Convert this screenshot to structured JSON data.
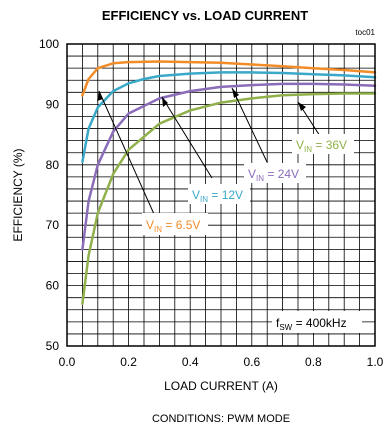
{
  "chart_data": {
    "type": "line",
    "title": "EFFICIENCY vs. LOAD CURRENT",
    "code": "toc01",
    "xlabel": "LOAD CURRENT (A)",
    "ylabel": "EFFICIENCY (%)",
    "xlim": [
      0,
      1.0
    ],
    "ylim": [
      50,
      100
    ],
    "xticks": [
      "0.0",
      "0.2",
      "0.4",
      "0.6",
      "0.8",
      "1.0"
    ],
    "yticks": [
      "50",
      "60",
      "70",
      "80",
      "90",
      "100"
    ],
    "grid": true,
    "conditions": "CONDITIONS: PWM MODE",
    "fsw_note": {
      "prefix": "f",
      "sub": "SW",
      "suffix": " = 400kHz"
    },
    "series": [
      {
        "name": "VIN = 6.5V",
        "label_prefix": "V",
        "label_sub": "IN",
        "label_suffix": " = 6.5V",
        "color": "#f28c28",
        "x": [
          0.05,
          0.07,
          0.1,
          0.15,
          0.2,
          0.3,
          0.4,
          0.5,
          0.6,
          0.7,
          0.8,
          0.9,
          1.0
        ],
        "y": [
          91.5,
          94.2,
          96.0,
          96.8,
          97.0,
          97.1,
          97.0,
          96.9,
          96.6,
          96.3,
          96.0,
          95.7,
          95.3
        ]
      },
      {
        "name": "VIN = 12V",
        "label_prefix": "V",
        "label_sub": "IN",
        "label_suffix": " = 12V",
        "color": "#3aa8c8",
        "x": [
          0.05,
          0.07,
          0.1,
          0.15,
          0.2,
          0.25,
          0.3,
          0.4,
          0.5,
          0.6,
          0.7,
          0.8,
          0.9,
          1.0
        ],
        "y": [
          80.5,
          86.0,
          89.5,
          92.2,
          93.5,
          94.2,
          94.7,
          95.1,
          95.3,
          95.3,
          95.2,
          95.0,
          94.8,
          94.5
        ]
      },
      {
        "name": "VIN = 24V",
        "label_prefix": "V",
        "label_sub": "IN",
        "label_suffix": " = 24V",
        "color": "#8a6cb8",
        "x": [
          0.05,
          0.07,
          0.1,
          0.15,
          0.2,
          0.3,
          0.4,
          0.5,
          0.6,
          0.7,
          0.8,
          0.9,
          1.0
        ],
        "y": [
          66.0,
          74.0,
          80.0,
          85.5,
          88.5,
          91.0,
          92.2,
          92.9,
          93.2,
          93.4,
          93.4,
          93.3,
          93.1
        ]
      },
      {
        "name": "VIN = 36V",
        "label_prefix": "V",
        "label_sub": "IN",
        "label_suffix": " = 36V",
        "color": "#8fb04a",
        "x": [
          0.05,
          0.07,
          0.1,
          0.15,
          0.2,
          0.3,
          0.4,
          0.5,
          0.6,
          0.7,
          0.8,
          0.9,
          1.0
        ],
        "y": [
          57.0,
          65.0,
          72.0,
          78.5,
          82.5,
          86.8,
          89.0,
          90.3,
          91.0,
          91.5,
          91.7,
          91.8,
          91.8
        ]
      }
    ]
  }
}
